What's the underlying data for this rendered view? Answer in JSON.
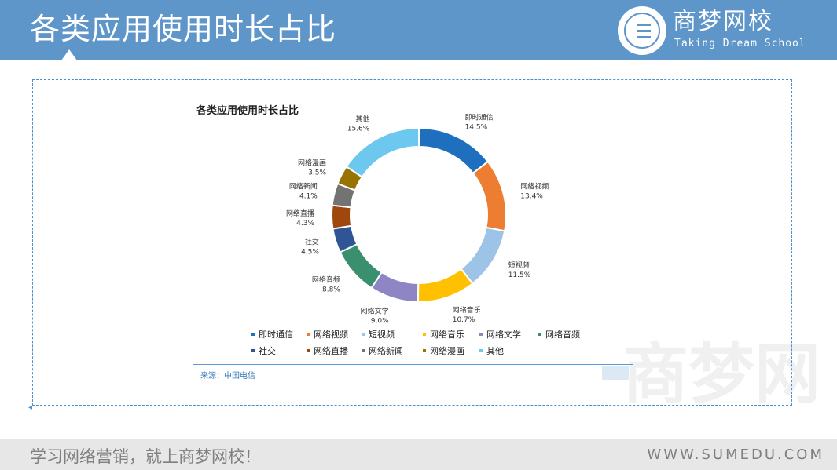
{
  "header": {
    "title": "各类应用使用时长占比",
    "logo_name": "商梦网校",
    "logo_subtitle": "Taking Dream School",
    "color": "#5f96c9"
  },
  "chart_data": {
    "type": "pie",
    "title": "各类应用使用时长占比",
    "hole": "donut",
    "legend_position": "bottom",
    "categories": [
      "即时通信",
      "网络视频",
      "短视频",
      "网络音乐",
      "网络文学",
      "网络音频",
      "社交",
      "网络直播",
      "网络新闻",
      "网络漫画",
      "其他"
    ],
    "values": [
      14.5,
      13.4,
      11.5,
      10.7,
      9.0,
      8.8,
      4.5,
      4.3,
      4.1,
      3.5,
      15.6
    ],
    "value_labels": [
      "14.5%",
      "13.4%",
      "11.5%",
      "10.7%",
      "9.0%",
      "8.8%",
      "4.5%",
      "4.3%",
      "4.1%",
      "3.5%",
      "15.6%"
    ],
    "colors": [
      "#1f6fbf",
      "#ed7d31",
      "#9dc3e6",
      "#ffc000",
      "#8e86c4",
      "#3a8f6e",
      "#2f5597",
      "#9e480e",
      "#737373",
      "#997300",
      "#6cc8ef"
    ]
  },
  "source": "来源：中国电信",
  "watermark": "商梦网",
  "footer": {
    "slogan": "学习网络营销，就上商梦网校！",
    "url": "WWW.SUMEDU.COM"
  }
}
